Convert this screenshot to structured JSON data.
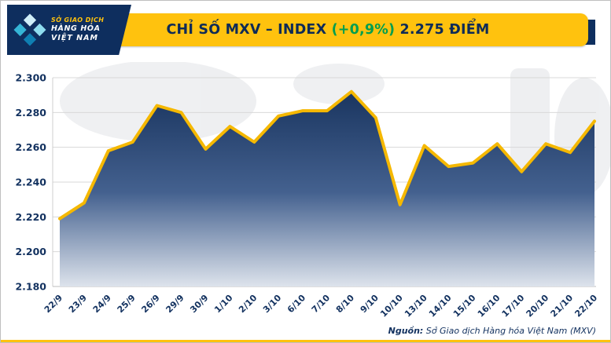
{
  "logo": {
    "lines": [
      "SỞ GIAO DỊCH",
      "HÀNG HÓA",
      "VIỆT NAM"
    ]
  },
  "header": {
    "title_prefix": "CHỈ SỐ MXV – INDEX ",
    "title_change": "(+0,9%)",
    "title_suffix": " 2.275 ĐIỂM"
  },
  "footer": {
    "source_label": "Nguồn:",
    "source_text": " Sở Giao dịch Hàng hóa Việt Nam (MXV)"
  },
  "colors": {
    "navy": "#0e2b57",
    "yellow": "#ffc20e",
    "green": "#009e4f",
    "line": "#f5b800",
    "grid": "#d8d8d8",
    "area_top": "#142f59",
    "area_mid": "#44618f",
    "area_bottom": "#dde3ec",
    "tick_text": "#12315f"
  },
  "chart_data": {
    "type": "area",
    "title": "CHỈ SỐ MXV – INDEX",
    "change_label": "+0,9%",
    "current_value_label": "2.275 ĐIỂM",
    "x": [
      "22/9",
      "23/9",
      "24/9",
      "25/9",
      "26/9",
      "29/9",
      "30/9",
      "1/10",
      "2/10",
      "3/10",
      "6/10",
      "7/10",
      "8/10",
      "9/10",
      "10/10",
      "13/10",
      "14/10",
      "15/10",
      "16/10",
      "17/10",
      "20/10",
      "21/10",
      "22/10"
    ],
    "values": [
      2219,
      2228,
      2258,
      2263,
      2284,
      2280,
      2259,
      2272,
      2263,
      2278,
      2281,
      2281,
      2292,
      2277,
      2227,
      2261,
      2249,
      2251,
      2262,
      2246,
      2262,
      2257,
      2275
    ],
    "y_ticks": [
      2300,
      2280,
      2260,
      2240,
      2220,
      2200,
      2180
    ],
    "y_tick_labels": [
      "2.300",
      "2.280",
      "2.260",
      "2.240",
      "2.220",
      "2.200",
      "2.180"
    ],
    "ylim": [
      2180,
      2300
    ],
    "xlabel": "",
    "ylabel": "",
    "grid": "horizontal",
    "legend": "none"
  }
}
